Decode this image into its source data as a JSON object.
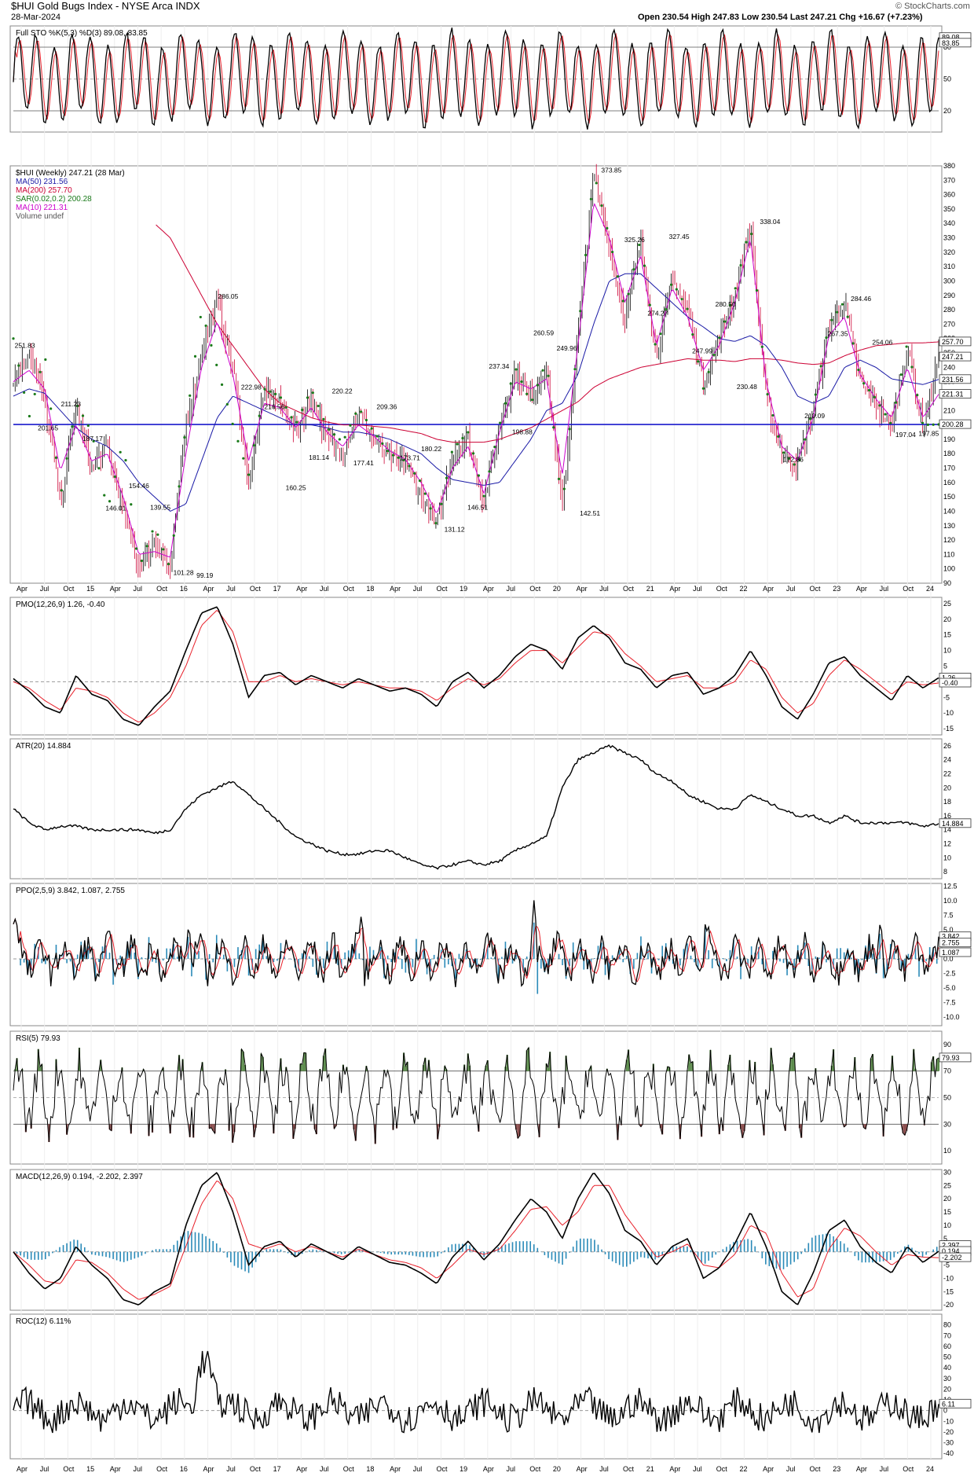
{
  "header": {
    "symbol_title": "$HUI Gold Bugs Index - NYSE Arca INDX",
    "date": "28-Mar-2024",
    "ohlc": "Open 230.54 High 247.83 Low 230.54 Last 247.21 Chg +16.67 (+7.23%)",
    "watermark": "© StockCharts.com"
  },
  "colors": {
    "price_up": "#000000",
    "price_down": "#cc0033",
    "ma50": "#1a1aa6",
    "ma200": "#cc0033",
    "ma10": "#cc00cc",
    "sar": "#1a7a1a",
    "support": "#1a1acc",
    "signal": "#e8202a",
    "hist": "#2a8ab8",
    "rsi_high": "#5a8a4a",
    "rsi_low": "#8a4a4a"
  },
  "x_axis": {
    "labels": [
      "Apr",
      "Jul",
      "Oct",
      "15",
      "Apr",
      "Jul",
      "Oct",
      "16",
      "Apr",
      "Jul",
      "Oct",
      "17",
      "Apr",
      "Jul",
      "Oct",
      "18",
      "Apr",
      "Jul",
      "Oct",
      "19",
      "Apr",
      "Jul",
      "Oct",
      "20",
      "Apr",
      "Jul",
      "Oct",
      "21",
      "Apr",
      "Jul",
      "Oct",
      "22",
      "Apr",
      "Jul",
      "Oct",
      "23",
      "Apr",
      "Jul",
      "Oct",
      "24"
    ]
  },
  "panels": {
    "sto": {
      "legend": "Full STO %K(5,3) %D(3) 89.08, 83.85",
      "ticks": [
        "80",
        "50",
        "20"
      ],
      "tags": [
        "89.08",
        "83.85"
      ]
    },
    "price": {
      "legend": [
        "$HUI (Weekly) 247.21 (28 Mar)",
        "MA(50) 231.56",
        "MA(200) 257.70",
        "SAR(0.02,0.2) 200.28",
        "MA(10) 221.31",
        "Volume undef"
      ],
      "ticks": [
        "380",
        "370",
        "360",
        "350",
        "340",
        "330",
        "320",
        "310",
        "300",
        "290",
        "280",
        "270",
        "260",
        "250",
        "240",
        "230",
        "220",
        "210",
        "200",
        "190",
        "180",
        "170",
        "160",
        "150",
        "140",
        "130",
        "120",
        "110",
        "100",
        "90"
      ],
      "tags": [
        "257.70",
        "247.21",
        "231.56",
        "221.31",
        "200.28"
      ]
    },
    "pmo": {
      "legend": "PMO(12,26,9) 1.26, -0.40",
      "ticks": [
        "25",
        "20",
        "15",
        "10",
        "5",
        "0",
        "-5",
        "-10",
        "-15"
      ],
      "tags": [
        "1.26",
        "-0.40"
      ]
    },
    "atr": {
      "legend": "ATR(20) 14.884",
      "ticks": [
        "26",
        "24",
        "22",
        "20",
        "18",
        "16",
        "14",
        "12",
        "10",
        "8"
      ],
      "tags": [
        "14.884"
      ]
    },
    "ppo": {
      "legend": "PPO(2,5,9) 3.842, 1.087, 2.755",
      "ticks": [
        "12.5",
        "10.0",
        "7.5",
        "5.0",
        "2.5",
        "0.0",
        "-2.5",
        "-5.0",
        "-7.5",
        "-10.0"
      ],
      "tags": [
        "3.842",
        "2.755",
        "1.087"
      ]
    },
    "rsi": {
      "legend": "RSI(5) 79.93",
      "ticks": [
        "90",
        "70",
        "50",
        "30",
        "10"
      ],
      "tags": [
        "79.93"
      ]
    },
    "macd": {
      "legend": "MACD(12,26,9) 0.194, -2.202, 2.397",
      "ticks": [
        "30",
        "25",
        "20",
        "15",
        "10",
        "5",
        "0",
        "-5",
        "-10",
        "-15",
        "-20"
      ],
      "tags": [
        "2.397",
        "0.194",
        "-2.202"
      ]
    },
    "roc": {
      "legend": "ROC(12) 6.11%",
      "ticks": [
        "80",
        "70",
        "60",
        "50",
        "40",
        "30",
        "20",
        "10",
        "0",
        "-10",
        "-20",
        "-30",
        "-40"
      ],
      "tags": [
        "6.11"
      ]
    }
  },
  "chart_data": {
    "type": "line",
    "title": "$HUI Gold Bugs Index - NYSE Arca INDX",
    "frequency": "weekly",
    "x_range": [
      "2014-03",
      "2024-03-28"
    ],
    "price_panel": {
      "ylim": [
        90,
        380
      ],
      "support_line": 200.28,
      "x": [
        "2014-03",
        "2014-07",
        "2014-09",
        "2014-11",
        "2015-01",
        "2015-03",
        "2015-05",
        "2015-07",
        "2015-09",
        "2015-11",
        "2016-01",
        "2016-03",
        "2016-05",
        "2016-07",
        "2016-09",
        "2016-11",
        "2017-01",
        "2017-03",
        "2017-05",
        "2017-07",
        "2017-09",
        "2017-11",
        "2018-01",
        "2018-03",
        "2018-05",
        "2018-07",
        "2018-09",
        "2018-11",
        "2019-01",
        "2019-03",
        "2019-05",
        "2019-07",
        "2019-09",
        "2019-11",
        "2020-01",
        "2020-03",
        "2020-05",
        "2020-07",
        "2020-09",
        "2020-11",
        "2021-01",
        "2021-03",
        "2021-05",
        "2021-07",
        "2021-09",
        "2021-11",
        "2022-01",
        "2022-04",
        "2022-06",
        "2022-08",
        "2022-10",
        "2022-12",
        "2023-02",
        "2023-04",
        "2023-06",
        "2023-08",
        "2023-10",
        "2023-12",
        "2024-02",
        "2024-03"
      ],
      "series": [
        {
          "name": "$HUI",
          "values": [
            231,
            251.8,
            218,
            146,
            211,
            170,
            187,
            140,
            101.3,
            120,
            99.2,
            200,
            250,
            286,
            240,
            160.3,
            223,
            216.6,
            195,
            220.2,
            190,
            181,
            209.4,
            190,
            177.4,
            173.7,
            150,
            131.1,
            180,
            190,
            146.5,
            199,
            237,
            220,
            240,
            142.5,
            261,
            374,
            325,
            274,
            327,
            248,
            300,
            281,
            230.5,
            258,
            290,
            338,
            220,
            180,
            172.9,
            210,
            267,
            284.5,
            230,
            215,
            197,
            254,
            197.9,
            247.2
          ]
        },
        {
          "name": "MA(50) 231.56",
          "values": [
            220,
            225,
            222,
            210,
            198,
            190,
            185,
            175,
            160,
            150,
            140,
            145,
            175,
            205,
            220,
            215,
            210,
            205,
            200,
            200,
            198,
            195,
            195,
            193,
            190,
            185,
            180,
            170,
            162,
            160,
            158,
            160,
            175,
            190,
            210,
            215,
            235,
            270,
            300,
            305,
            305,
            295,
            285,
            275,
            268,
            260,
            258,
            262,
            255,
            240,
            220,
            215,
            220,
            240,
            245,
            240,
            232,
            230,
            228,
            231.6
          ]
        },
        {
          "name": "MA(200) 257.70",
          "values": [
            null,
            null,
            null,
            null,
            null,
            null,
            null,
            null,
            null,
            340,
            330,
            310,
            290,
            270,
            255,
            240,
            225,
            215,
            210,
            205,
            202,
            200,
            200,
            199,
            198,
            196,
            194,
            190,
            188,
            188,
            188,
            190,
            194,
            198,
            204,
            210,
            216,
            226,
            232,
            236,
            240,
            242,
            244,
            246,
            245,
            245,
            244,
            246,
            246,
            245,
            243,
            242,
            243,
            248,
            252,
            255,
            256,
            257,
            257,
            257.7
          ]
        },
        {
          "name": "MA(10) 221.31",
          "values": [
            230,
            238,
            225,
            168,
            200,
            175,
            180,
            150,
            110,
            112,
            108,
            180,
            240,
            272,
            235,
            175,
            215,
            212,
            198,
            212,
            195,
            185,
            200,
            192,
            182,
            176,
            160,
            138,
            170,
            185,
            152,
            195,
            230,
            225,
            232,
            165,
            255,
            355,
            330,
            285,
            318,
            255,
            295,
            275,
            238,
            255,
            285,
            330,
            230,
            185,
            175,
            205,
            262,
            275,
            235,
            218,
            205,
            240,
            205,
            221.3
          ]
        },
        {
          "name": "SAR(0.02,0.2) 200.28",
          "values": [
            260,
            205,
            250,
            150,
            215,
            195,
            140,
            190,
            100,
            130,
            100,
            200,
            280,
            240,
            200,
            165,
            225,
            220,
            200,
            225,
            198,
            188,
            212,
            195,
            180,
            175,
            160,
            130,
            183,
            195,
            150,
            200,
            240,
            215,
            245,
            140,
            262,
            376,
            330,
            280,
            330,
            250,
            300,
            280,
            225,
            260,
            293,
            340,
            225,
            182,
            170,
            212,
            270,
            286,
            232,
            218,
            200,
            257,
            200,
            200.3
          ]
        }
      ],
      "annotations": [
        "251.83",
        "201.65",
        "211.23",
        "187.17",
        "146.01",
        "154.46",
        "139.55",
        "101.28",
        "99.19",
        "286.05",
        "222.98",
        "216.56",
        "160.25",
        "181.14",
        "220.22",
        "177.41",
        "209.36",
        "173.71",
        "180.22",
        "131.12",
        "146.51",
        "237.34",
        "198.88",
        "260.59",
        "249.96",
        "142.51",
        "373.85",
        "325.26",
        "274.27",
        "327.45",
        "247.99",
        "280.50",
        "230.48",
        "338.04",
        "172.86",
        "210.09",
        "267.35",
        "284.46",
        "254.06",
        "197.04",
        "197.85"
      ]
    },
    "indicators": {
      "sto_k_last": 89.08,
      "sto_d_last": 83.85,
      "pmo": {
        "ylim": [
          -15,
          25
        ],
        "values": [
          1,
          -3,
          -8,
          -10,
          2,
          -4,
          -6,
          -12,
          -14,
          -8,
          -3,
          10,
          22,
          24,
          12,
          -5,
          2,
          3,
          -1,
          2,
          0,
          -2,
          1,
          -1,
          -3,
          -2,
          -4,
          -8,
          0,
          3,
          -2,
          2,
          8,
          12,
          10,
          4,
          14,
          18,
          14,
          6,
          4,
          -2,
          2,
          3,
          -4,
          -2,
          2,
          10,
          2,
          -8,
          -12,
          -4,
          6,
          8,
          2,
          -2,
          -6,
          2,
          -2,
          1.26
        ],
        "signal": [
          0,
          -2,
          -6,
          -9,
          -2,
          -3,
          -5,
          -10,
          -13,
          -10,
          -5,
          5,
          18,
          23,
          16,
          0,
          0,
          2,
          0,
          1,
          0,
          -1,
          0,
          -1,
          -2,
          -2,
          -3,
          -6,
          -2,
          1,
          -1,
          1,
          6,
          10,
          10,
          6,
          11,
          16,
          15,
          9,
          5,
          0,
          1,
          2,
          -2,
          -2,
          0,
          7,
          4,
          -5,
          -10,
          -7,
          2,
          7,
          4,
          0,
          -4,
          0,
          -1,
          -0.4
        ],
        "last": 1.26,
        "signal_last": -0.4
      },
      "atr": {
        "ylim": [
          8,
          26
        ],
        "values": [
          17,
          15,
          14,
          14.5,
          14.5,
          14,
          14,
          14,
          14,
          13.5,
          14,
          17,
          19,
          20,
          21,
          19,
          17,
          15,
          13,
          12,
          11,
          10.5,
          10.5,
          11,
          11,
          10,
          9,
          8.5,
          9,
          9.5,
          9,
          9.5,
          11,
          12,
          13,
          20,
          24,
          25,
          26,
          25,
          24,
          22,
          21,
          19,
          18,
          17,
          17,
          19,
          18,
          17,
          16,
          16,
          15,
          16,
          15,
          15,
          15,
          15,
          14.5,
          14.884
        ],
        "last": 14.884
      },
      "ppo_last": 3.842,
      "ppo_signal_last": 1.087,
      "ppo_hist_last": 2.755,
      "rsi_last": 79.93,
      "macd": {
        "ylim": [
          -20,
          30
        ],
        "values": [
          0,
          -8,
          -14,
          -10,
          2,
          -5,
          -10,
          -18,
          -20,
          -15,
          -12,
          10,
          25,
          30,
          15,
          -5,
          2,
          4,
          -2,
          3,
          0,
          -3,
          2,
          -1,
          -4,
          -5,
          -8,
          -12,
          -2,
          4,
          -3,
          3,
          12,
          20,
          15,
          5,
          20,
          30,
          22,
          8,
          4,
          -5,
          2,
          5,
          -10,
          -6,
          3,
          15,
          2,
          -15,
          -20,
          -8,
          8,
          12,
          2,
          -4,
          -8,
          2,
          -4,
          0.194
        ],
        "signal": [
          0,
          -5,
          -11,
          -12,
          -3,
          -4,
          -8,
          -14,
          -18,
          -16,
          -13,
          2,
          18,
          27,
          20,
          3,
          1,
          3,
          0,
          2,
          0,
          -2,
          1,
          -1,
          -3,
          -4,
          -6,
          -10,
          -5,
          1,
          -1,
          1,
          8,
          16,
          17,
          10,
          15,
          25,
          25,
          14,
          6,
          -2,
          0,
          3,
          -5,
          -6,
          -1,
          10,
          7,
          -8,
          -17,
          -14,
          1,
          9,
          6,
          0,
          -5,
          -1,
          -2,
          -2.202
        ],
        "last": 0.194,
        "signal_last": -2.202,
        "hist_last": 2.397
      },
      "roc_last": 6.11
    }
  }
}
